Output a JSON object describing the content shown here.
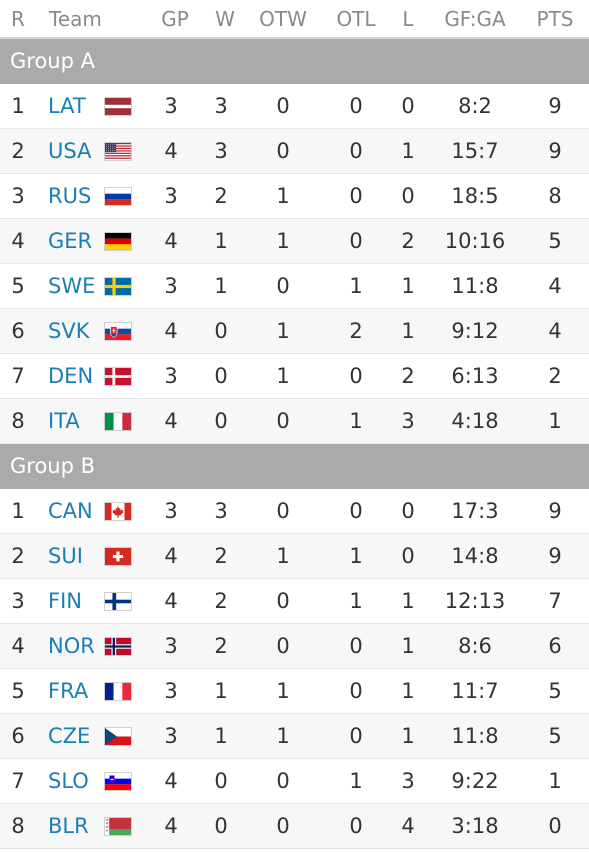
{
  "headers": {
    "r": "R",
    "team": "Team",
    "gp": "GP",
    "w": "W",
    "otw": "OTW",
    "otl": "OTL",
    "l": "L",
    "gfga": "GF:GA",
    "pts": "PTS"
  },
  "groups": [
    {
      "name": "Group A",
      "teams": [
        {
          "r": "1",
          "team": "LAT",
          "flag": "latvia-flag-icon",
          "gp": "3",
          "w": "3",
          "otw": "0",
          "otl": "0",
          "l": "0",
          "gfga": "8:2",
          "pts": "9"
        },
        {
          "r": "2",
          "team": "USA",
          "flag": "usa-flag-icon",
          "gp": "4",
          "w": "3",
          "otw": "0",
          "otl": "0",
          "l": "1",
          "gfga": "15:7",
          "pts": "9"
        },
        {
          "r": "3",
          "team": "RUS",
          "flag": "russia-flag-icon",
          "gp": "3",
          "w": "2",
          "otw": "1",
          "otl": "0",
          "l": "0",
          "gfga": "18:5",
          "pts": "8"
        },
        {
          "r": "4",
          "team": "GER",
          "flag": "germany-flag-icon",
          "gp": "4",
          "w": "1",
          "otw": "1",
          "otl": "0",
          "l": "2",
          "gfga": "10:16",
          "pts": "5"
        },
        {
          "r": "5",
          "team": "SWE",
          "flag": "sweden-flag-icon",
          "gp": "3",
          "w": "1",
          "otw": "0",
          "otl": "1",
          "l": "1",
          "gfga": "11:8",
          "pts": "4"
        },
        {
          "r": "6",
          "team": "SVK",
          "flag": "slovakia-flag-icon",
          "gp": "4",
          "w": "0",
          "otw": "1",
          "otl": "2",
          "l": "1",
          "gfga": "9:12",
          "pts": "4"
        },
        {
          "r": "7",
          "team": "DEN",
          "flag": "denmark-flag-icon",
          "gp": "3",
          "w": "0",
          "otw": "1",
          "otl": "0",
          "l": "2",
          "gfga": "6:13",
          "pts": "2"
        },
        {
          "r": "8",
          "team": "ITA",
          "flag": "italy-flag-icon",
          "gp": "4",
          "w": "0",
          "otw": "0",
          "otl": "1",
          "l": "3",
          "gfga": "4:18",
          "pts": "1"
        }
      ]
    },
    {
      "name": "Group B",
      "teams": [
        {
          "r": "1",
          "team": "CAN",
          "flag": "canada-flag-icon",
          "gp": "3",
          "w": "3",
          "otw": "0",
          "otl": "0",
          "l": "0",
          "gfga": "17:3",
          "pts": "9"
        },
        {
          "r": "2",
          "team": "SUI",
          "flag": "switzerland-flag-icon",
          "gp": "4",
          "w": "2",
          "otw": "1",
          "otl": "1",
          "l": "0",
          "gfga": "14:8",
          "pts": "9"
        },
        {
          "r": "3",
          "team": "FIN",
          "flag": "finland-flag-icon",
          "gp": "4",
          "w": "2",
          "otw": "0",
          "otl": "1",
          "l": "1",
          "gfga": "12:13",
          "pts": "7"
        },
        {
          "r": "4",
          "team": "NOR",
          "flag": "norway-flag-icon",
          "gp": "3",
          "w": "2",
          "otw": "0",
          "otl": "0",
          "l": "1",
          "gfga": "8:6",
          "pts": "6"
        },
        {
          "r": "5",
          "team": "FRA",
          "flag": "france-flag-icon",
          "gp": "3",
          "w": "1",
          "otw": "1",
          "otl": "0",
          "l": "1",
          "gfga": "11:7",
          "pts": "5"
        },
        {
          "r": "6",
          "team": "CZE",
          "flag": "czech-flag-icon",
          "gp": "3",
          "w": "1",
          "otw": "1",
          "otl": "0",
          "l": "1",
          "gfga": "11:8",
          "pts": "5"
        },
        {
          "r": "7",
          "team": "SLO",
          "flag": "slovenia-flag-icon",
          "gp": "4",
          "w": "0",
          "otw": "0",
          "otl": "1",
          "l": "3",
          "gfga": "9:22",
          "pts": "1"
        },
        {
          "r": "8",
          "team": "BLR",
          "flag": "belarus-flag-icon",
          "gp": "4",
          "w": "0",
          "otw": "0",
          "otl": "0",
          "l": "4",
          "gfga": "3:18",
          "pts": "0"
        }
      ]
    }
  ],
  "colors": {
    "team_link": "#1a7fb3",
    "group_header_bg": "#aaaaaa",
    "header_text": "#8a8a8a",
    "alt_row_bg": "#f7f7f7"
  }
}
